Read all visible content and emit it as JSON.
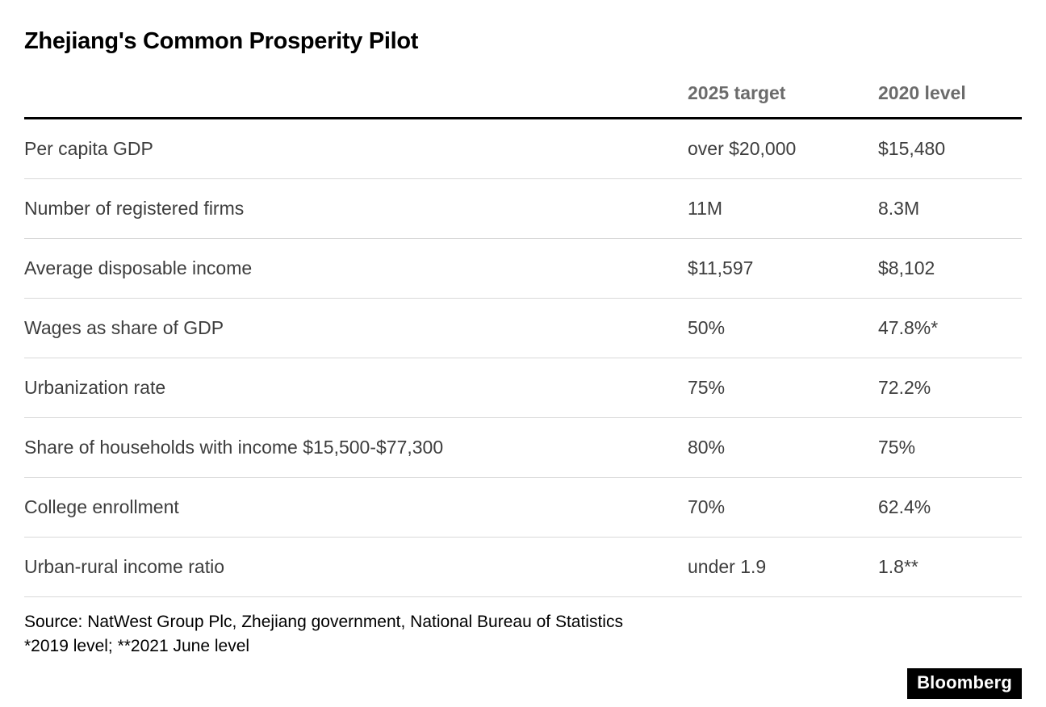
{
  "chart_data": {
    "type": "table",
    "title": "Zhejiang's Common Prosperity Pilot",
    "columns": [
      "2025 target",
      "2020 level"
    ],
    "rows": [
      {
        "label": "Per capita GDP",
        "target": "over $20,000",
        "level": "$15,480"
      },
      {
        "label": "Number of registered firms",
        "target": "11M",
        "level": "8.3M"
      },
      {
        "label": "Average disposable income",
        "target": "$11,597",
        "level": "$8,102"
      },
      {
        "label": "Wages as share of GDP",
        "target": "50%",
        "level": "47.8%*"
      },
      {
        "label": "Urbanization rate",
        "target": "75%",
        "level": "72.2%"
      },
      {
        "label": "Share of households with income $15,500-$77,300",
        "target": "80%",
        "level": "75%"
      },
      {
        "label": "College enrollment",
        "target": "70%",
        "level": "62.4%"
      },
      {
        "label": "Urban-rural income ratio",
        "target": "under 1.9",
        "level": "1.8**"
      }
    ],
    "layout": {
      "legend": "none",
      "grid": "horizontal-row-separators"
    }
  },
  "footer": {
    "source_line1": "Source: NatWest Group Plc, Zhejiang government, National Bureau of Statistics",
    "source_line2": "*2019 level; **2021 June level",
    "logo_text": "Bloomberg"
  },
  "colors": {
    "background": "#ffffff",
    "title_text": "#000000",
    "header_text": "#6b6b6b",
    "body_text": "#3d3d3d",
    "header_rule": "#000000",
    "row_separator": "#d9d9d9",
    "logo_background": "#000000",
    "logo_text": "#ffffff"
  }
}
